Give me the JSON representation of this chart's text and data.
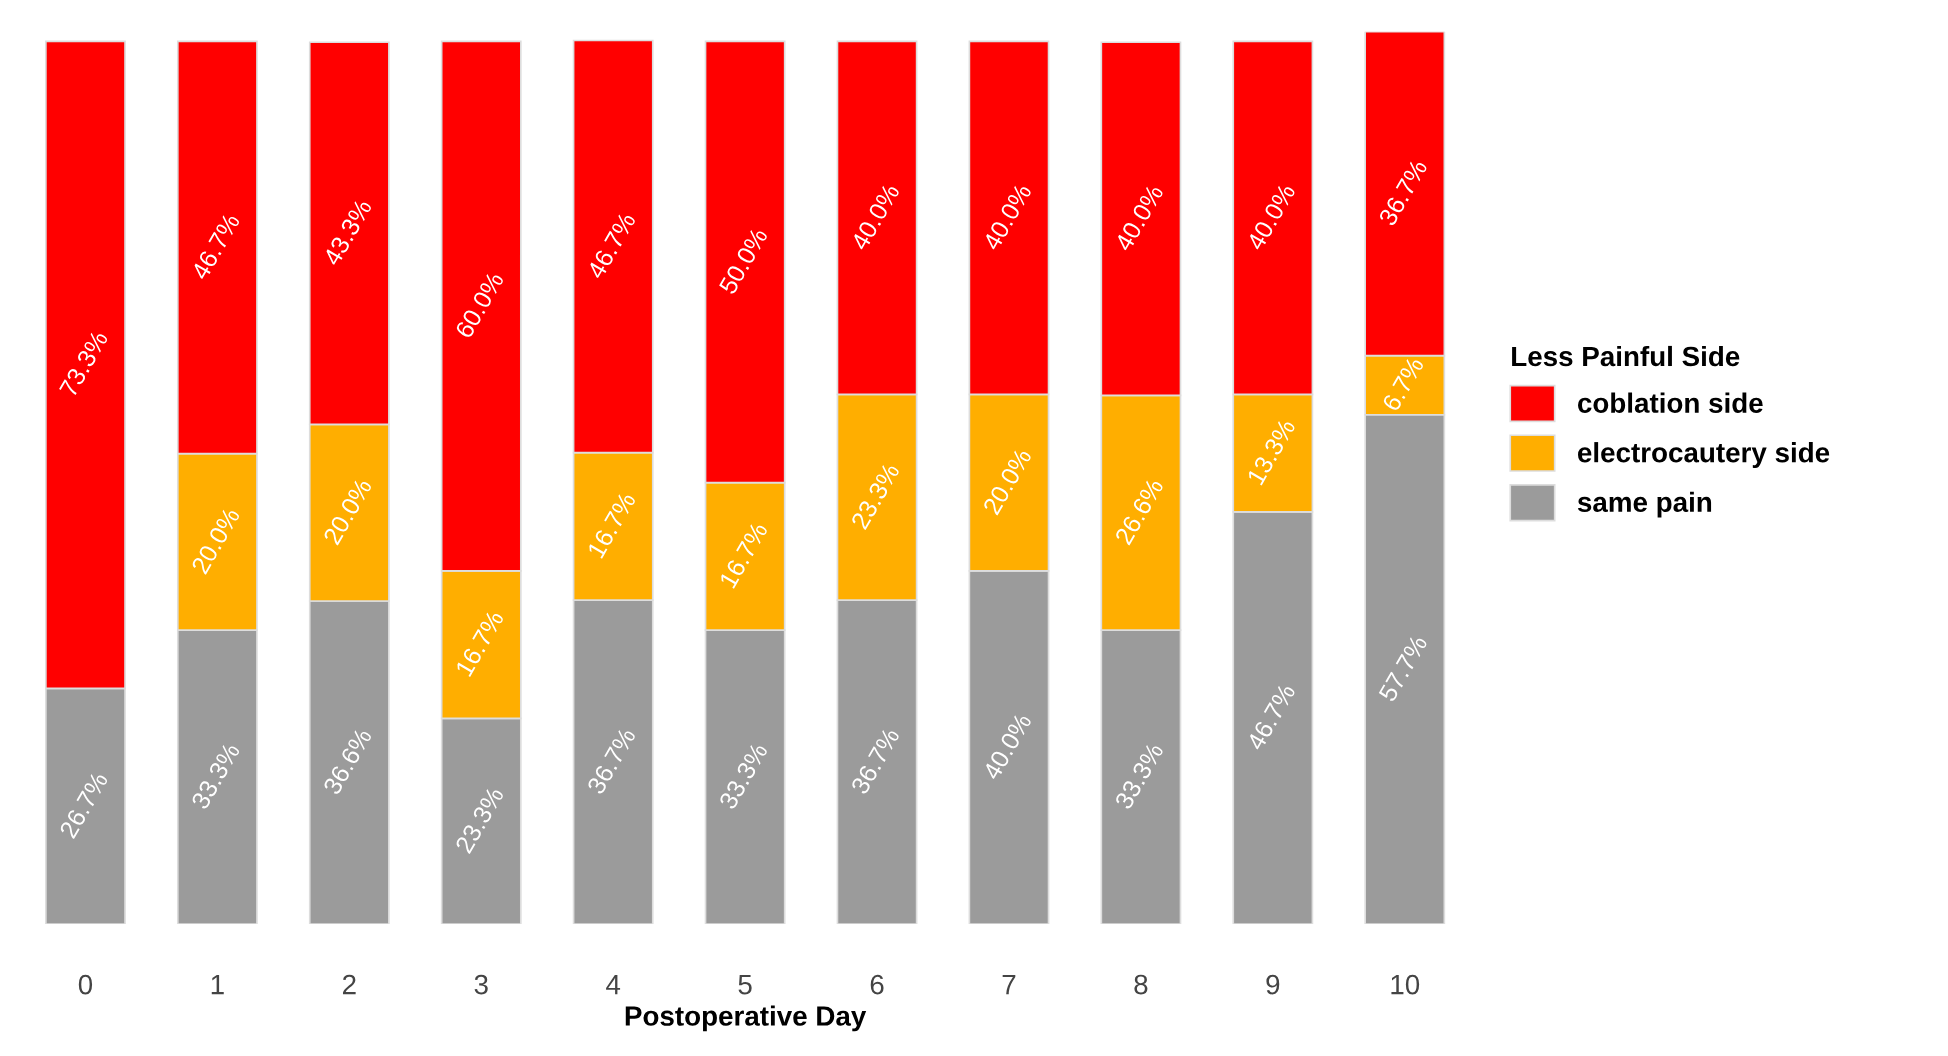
{
  "chart_data": {
    "type": "bar",
    "stacked": true,
    "xlabel": "Postoperative Day",
    "legend_title": "Less Painful Side",
    "legend": "right",
    "categories": [
      "0",
      "1",
      "2",
      "3",
      "4",
      "5",
      "6",
      "7",
      "8",
      "9",
      "10"
    ],
    "series": [
      {
        "name": "same pain",
        "color": "#9b9b9b",
        "values": [
          26.7,
          33.3,
          36.6,
          23.3,
          36.7,
          33.3,
          36.7,
          40.0,
          33.3,
          46.7,
          57.7
        ],
        "value_labels": [
          "26.7%",
          "33.3%",
          "36.6%",
          "23.3%",
          "36.7%",
          "33.3%",
          "36.7%",
          "40.0%",
          "33.3%",
          "46.7%",
          "57.7%"
        ]
      },
      {
        "name": "electrocautery side",
        "color": "#ffae00",
        "values": [
          null,
          20.0,
          20.0,
          16.7,
          16.7,
          16.7,
          23.3,
          20.0,
          26.6,
          13.3,
          6.7
        ],
        "value_labels": [
          null,
          "20.0%",
          "20.0%",
          "16.7%",
          "16.7%",
          "16.7%",
          "23.3%",
          "20.0%",
          "26.6%",
          "13.3%",
          "6.7%"
        ]
      },
      {
        "name": "coblation side",
        "color": "#ff0000",
        "values": [
          73.3,
          46.7,
          43.3,
          60.0,
          46.7,
          50.0,
          40.0,
          40.0,
          40.0,
          40.0,
          36.7
        ],
        "value_labels": [
          "73.3%",
          "46.7%",
          "43.3%",
          "60.0%",
          "46.7%",
          "50.0%",
          "40.0%",
          "40.0%",
          "40.0%",
          "40.0%",
          "36.7%"
        ]
      }
    ]
  }
}
